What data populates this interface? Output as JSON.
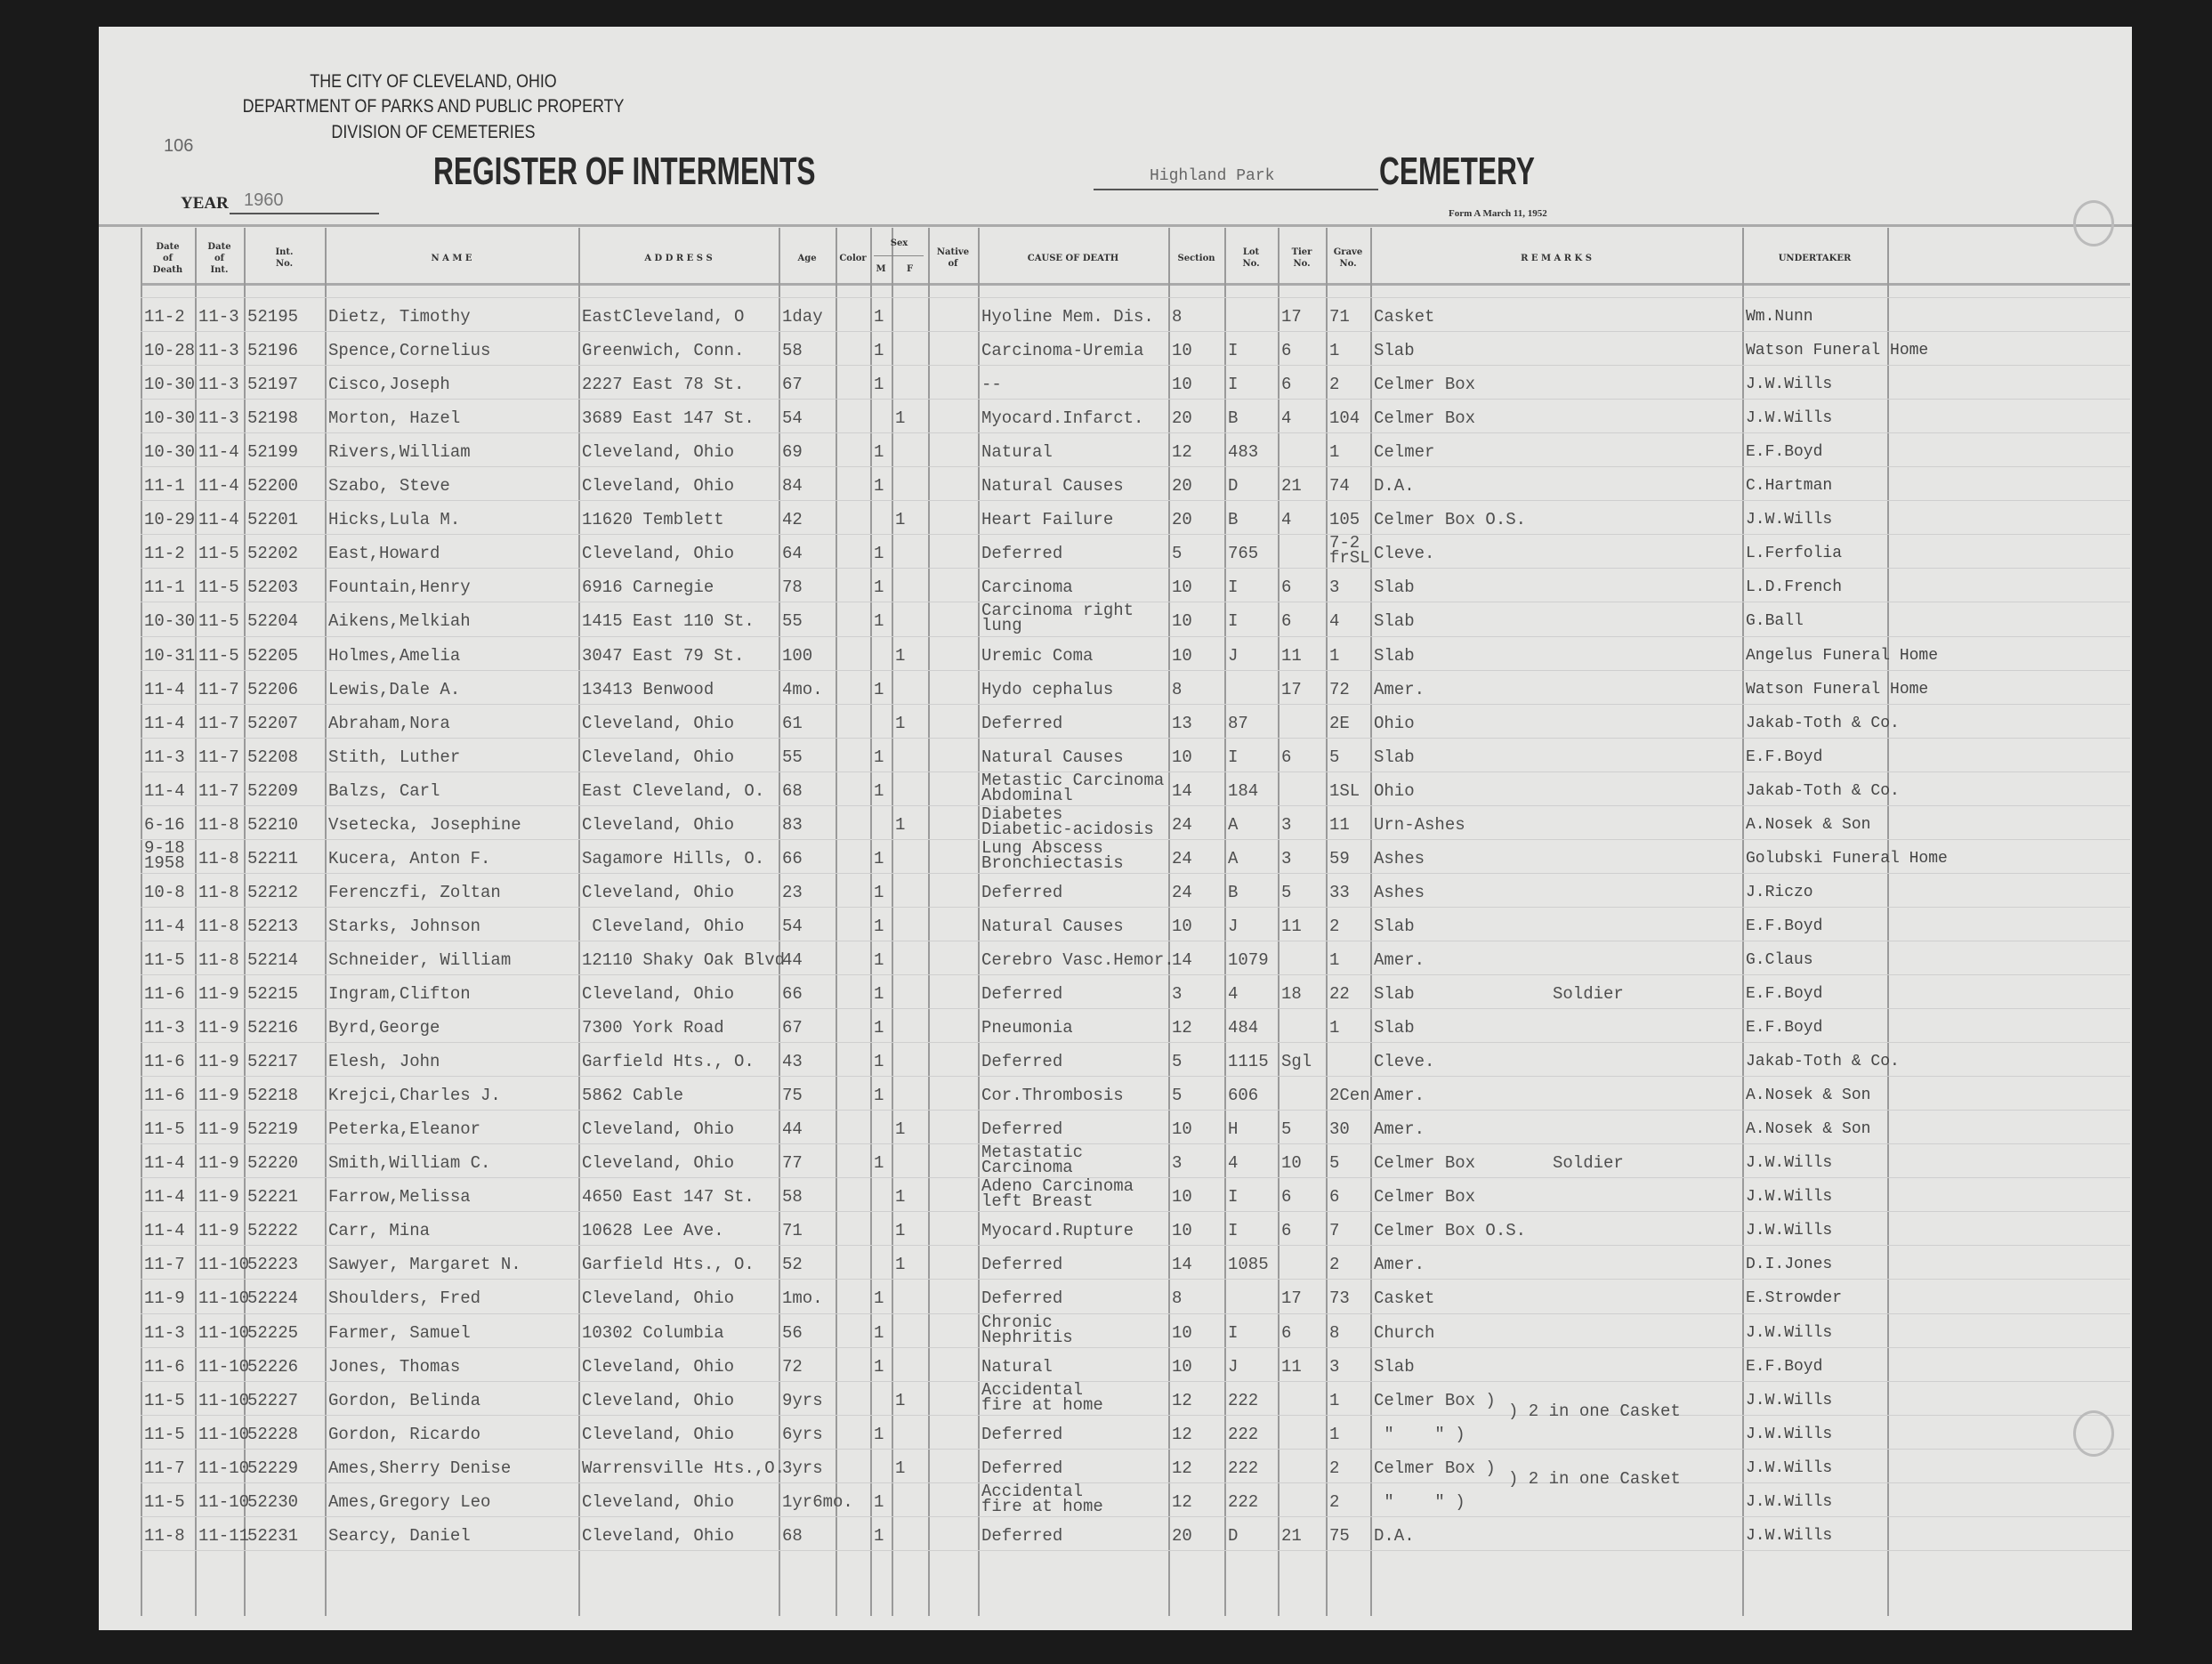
{
  "header": {
    "city": "THE CITY OF CLEVELAND, OHIO",
    "department": "DEPARTMENT OF PARKS AND PUBLIC PROPERTY",
    "division": "DIVISION OF CEMETERIES",
    "page_number": "106",
    "title": "REGISTER OF INTERMENTS",
    "cemetery_name": "Highland Park",
    "cemetery_label": "CEMETERY",
    "year_label": "YEAR",
    "year": "1960",
    "form": "Form A March 11, 1952"
  },
  "columns": {
    "date_of_death": "Date\nof\nDeath",
    "date_of_int": "Date\nof\nInt.",
    "int_no": "Int.\nNo.",
    "name": "N A M E",
    "address": "A D D R E S S",
    "age": "Age",
    "color": "Color",
    "sex": "Sex",
    "m": "M",
    "f": "F",
    "native_of": "Native\nof",
    "cause": "CAUSE OF DEATH",
    "section": "Section",
    "lot": "Lot\nNo.",
    "tier": "Tier\nNo.",
    "grave": "Grave\nNo.",
    "remarks": "R E M A R K S",
    "undertaker": "UNDERTAKER"
  },
  "rows": [
    {
      "death": "11-2",
      "int": "11-3",
      "no": "52195",
      "name": "Dietz, Timothy",
      "address": "EastCleveland, O",
      "age": "1day",
      "m": "1",
      "f": "",
      "cause": "Hyoline Mem. Dis.",
      "section": "8",
      "lot": "",
      "tier": "17",
      "grave": "71",
      "remarks": "Casket",
      "note": "",
      "undertaker": "Wm.Nunn"
    },
    {
      "death": "10-28",
      "int": "11-3",
      "no": "52196",
      "name": "Spence,Cornelius",
      "address": "Greenwich, Conn.",
      "age": "58",
      "m": "1",
      "f": "",
      "cause": "Carcinoma-Uremia",
      "section": "10",
      "lot": "I",
      "tier": "6",
      "grave": "1",
      "remarks": "Slab",
      "note": "",
      "undertaker": "Watson Funeral Home"
    },
    {
      "death": "10-30",
      "int": "11-3",
      "no": "52197",
      "name": "Cisco,Joseph",
      "address": "2227 East 78 St.",
      "age": "67",
      "m": "1",
      "f": "",
      "cause": "--",
      "section": "10",
      "lot": "I",
      "tier": "6",
      "grave": "2",
      "remarks": "Celmer Box",
      "note": "",
      "undertaker": "J.W.Wills"
    },
    {
      "death": "10-30",
      "int": "11-3",
      "no": "52198",
      "name": "Morton, Hazel",
      "address": "3689 East 147 St.",
      "age": "54",
      "m": "",
      "f": "1",
      "cause": "Myocard.Infarct.",
      "section": "20",
      "lot": "B",
      "tier": "4",
      "grave": "104",
      "remarks": "Celmer Box",
      "note": "",
      "undertaker": "J.W.Wills"
    },
    {
      "death": "10-30",
      "int": "11-4",
      "no": "52199",
      "name": "Rivers,William",
      "address": "Cleveland, Ohio",
      "age": "69",
      "m": "1",
      "f": "",
      "cause": "Natural",
      "section": "12",
      "lot": "483",
      "tier": "",
      "grave": "1",
      "remarks": "Celmer",
      "note": "",
      "undertaker": "E.F.Boyd"
    },
    {
      "death": "11-1",
      "int": "11-4",
      "no": "52200",
      "name": "Szabo, Steve",
      "address": "Cleveland, Ohio",
      "age": "84",
      "m": "1",
      "f": "",
      "cause": "Natural Causes",
      "section": "20",
      "lot": "D",
      "tier": "21",
      "grave": "74",
      "remarks": "D.A.",
      "note": "",
      "undertaker": "C.Hartman"
    },
    {
      "death": "10-29",
      "int": "11-4",
      "no": "52201",
      "name": "Hicks,Lula M.",
      "address": "11620 Temblett",
      "age": "42",
      "m": "",
      "f": "1",
      "cause": "Heart Failure",
      "section": "20",
      "lot": "B",
      "tier": "4",
      "grave": "105",
      "remarks": "Celmer Box O.S.",
      "note": "",
      "undertaker": "J.W.Wills"
    },
    {
      "death": "11-2",
      "int": "11-5",
      "no": "52202",
      "name": "East,Howard",
      "address": "Cleveland, Ohio",
      "age": "64",
      "m": "1",
      "f": "",
      "cause": "Deferred",
      "section": "5",
      "lot": "765",
      "tier": "",
      "grave": "7-2\nfrSL",
      "remarks": "Cleve.",
      "note": "",
      "undertaker": "L.Ferfolia"
    },
    {
      "death": "11-1",
      "int": "11-5",
      "no": "52203",
      "name": "Fountain,Henry",
      "address": "6916 Carnegie",
      "age": "78",
      "m": "1",
      "f": "",
      "cause": "Carcinoma",
      "section": "10",
      "lot": "I",
      "tier": "6",
      "grave": "3",
      "remarks": "Slab",
      "note": "",
      "undertaker": "L.D.French"
    },
    {
      "death": "10-30",
      "int": "11-5",
      "no": "52204",
      "name": "Aikens,Melkiah",
      "address": "1415 East 110 St.",
      "age": "55",
      "m": "1",
      "f": "",
      "cause": "Carcinoma right\nlung",
      "section": "10",
      "lot": "I",
      "tier": "6",
      "grave": "4",
      "remarks": "Slab",
      "note": "",
      "undertaker": "G.Ball"
    },
    {
      "death": "10-31",
      "int": "11-5",
      "no": "52205",
      "name": "Holmes,Amelia",
      "address": "3047 East 79 St.",
      "age": "100",
      "m": "",
      "f": "1",
      "cause": "Uremic Coma",
      "section": "10",
      "lot": "J",
      "tier": "11",
      "grave": "1",
      "remarks": "Slab",
      "note": "",
      "undertaker": "Angelus Funeral Home"
    },
    {
      "death": "11-4",
      "int": "11-7",
      "no": "52206",
      "name": "Lewis,Dale A.",
      "address": "13413 Benwood",
      "age": "4mo.",
      "m": "1",
      "f": "",
      "cause": "Hydo cephalus",
      "section": "8",
      "lot": "",
      "tier": "17",
      "grave": "72",
      "remarks": "Amer.",
      "note": "",
      "undertaker": "Watson Funeral Home"
    },
    {
      "death": "11-4",
      "int": "11-7",
      "no": "52207",
      "name": "Abraham,Nora",
      "address": "Cleveland, Ohio",
      "age": "61",
      "m": "",
      "f": "1",
      "cause": "Deferred",
      "section": "13",
      "lot": "87",
      "tier": "",
      "grave": "2E",
      "remarks": "Ohio",
      "note": "",
      "undertaker": "Jakab-Toth & Co."
    },
    {
      "death": "11-3",
      "int": "11-7",
      "no": "52208",
      "name": "Stith, Luther",
      "address": "Cleveland, Ohio",
      "age": "55",
      "m": "1",
      "f": "",
      "cause": "Natural Causes",
      "section": "10",
      "lot": "I",
      "tier": "6",
      "grave": "5",
      "remarks": "Slab",
      "note": "",
      "undertaker": "E.F.Boyd"
    },
    {
      "death": "11-4",
      "int": "11-7",
      "no": "52209",
      "name": "Balzs, Carl",
      "address": "East Cleveland, O.",
      "age": "68",
      "m": "1",
      "f": "",
      "cause": "Metastic Carcinoma\nAbdominal",
      "section": "14",
      "lot": "184",
      "tier": "",
      "grave": "1SL",
      "remarks": "Ohio",
      "note": "",
      "undertaker": "Jakab-Toth & Co."
    },
    {
      "death": "6-16",
      "int": "11-8",
      "no": "52210",
      "name": "Vsetecka, Josephine",
      "address": "Cleveland, Ohio",
      "age": "83",
      "m": "",
      "f": "1",
      "cause": "Diabetes\nDiabetic-acidosis",
      "section": "24",
      "lot": "A",
      "tier": "3",
      "grave": "11",
      "remarks": "Urn-Ashes",
      "note": "",
      "undertaker": "A.Nosek & Son"
    },
    {
      "death": "9-18\n1958",
      "int": "11-8",
      "no": "52211",
      "name": "Kucera, Anton F.",
      "address": "Sagamore Hills, O.",
      "age": "66",
      "m": "1",
      "f": "",
      "cause": "Lung Abscess\nBronchiectasis",
      "section": "24",
      "lot": "A",
      "tier": "3",
      "grave": "59",
      "remarks": "Ashes",
      "note": "",
      "undertaker": "Golubski Funeral Home"
    },
    {
      "death": "10-8",
      "int": "11-8",
      "no": "52212",
      "name": "Ferenczfi, Zoltan",
      "address": "Cleveland, Ohio",
      "age": "23",
      "m": "1",
      "f": "",
      "cause": "Deferred",
      "section": "24",
      "lot": "B",
      "tier": "5",
      "grave": "33",
      "remarks": "Ashes",
      "note": "",
      "undertaker": "J.Riczo"
    },
    {
      "death": "11-4",
      "int": "11-8",
      "no": "52213",
      "name": "Starks, Johnson",
      "address": " Cleveland, Ohio",
      "age": "54",
      "m": "1",
      "f": "",
      "cause": "Natural Causes",
      "section": "10",
      "lot": "J",
      "tier": "11",
      "grave": "2",
      "remarks": "Slab",
      "note": "",
      "undertaker": "E.F.Boyd"
    },
    {
      "death": "11-5",
      "int": "11-8",
      "no": "52214",
      "name": "Schneider, William",
      "address": "12110 Shaky Oak Blvd",
      "age": "44",
      "m": "1",
      "f": "",
      "cause": "Cerebro Vasc.Hemor.",
      "section": "14",
      "lot": "1079",
      "tier": "",
      "grave": "1",
      "remarks": "Amer.",
      "note": "",
      "undertaker": "G.Claus"
    },
    {
      "death": "11-6",
      "int": "11-9",
      "no": "52215",
      "name": "Ingram,Clifton",
      "address": "Cleveland, Ohio",
      "age": "66",
      "m": "1",
      "f": "",
      "cause": "Deferred",
      "section": "3",
      "lot": "4",
      "tier": "18",
      "grave": "22",
      "remarks": "Slab",
      "note": "Soldier",
      "undertaker": "E.F.Boyd"
    },
    {
      "death": "11-3",
      "int": "11-9",
      "no": "52216",
      "name": "Byrd,George",
      "address": "7300 York Road",
      "age": "67",
      "m": "1",
      "f": "",
      "cause": "Pneumonia",
      "section": "12",
      "lot": "484",
      "tier": "",
      "grave": "1",
      "remarks": "Slab",
      "note": "",
      "undertaker": "E.F.Boyd"
    },
    {
      "death": "11-6",
      "int": "11-9",
      "no": "52217",
      "name": "Elesh, John",
      "address": "Garfield Hts., O.",
      "age": "43",
      "m": "1",
      "f": "",
      "cause": "Deferred",
      "section": "5",
      "lot": "1115",
      "tier": "Sgl",
      "grave": "",
      "remarks": "Cleve.",
      "note": "",
      "undertaker": "Jakab-Toth & Co."
    },
    {
      "death": "11-6",
      "int": "11-9",
      "no": "52218",
      "name": "Krejci,Charles J.",
      "address": "5862 Cable",
      "age": "75",
      "m": "1",
      "f": "",
      "cause": "Cor.Thrombosis",
      "section": "5",
      "lot": "606",
      "tier": "",
      "grave": "2Cen",
      "remarks": "Amer.",
      "note": "",
      "undertaker": "A.Nosek & Son"
    },
    {
      "death": "11-5",
      "int": "11-9",
      "no": "52219",
      "name": "Peterka,Eleanor",
      "address": "Cleveland, Ohio",
      "age": "44",
      "m": "",
      "f": "1",
      "cause": "Deferred",
      "section": "10",
      "lot": "H",
      "tier": "5",
      "grave": "30",
      "remarks": "Amer.",
      "note": "",
      "undertaker": "A.Nosek & Son"
    },
    {
      "death": "11-4",
      "int": "11-9",
      "no": "52220",
      "name": "Smith,William C.",
      "address": "Cleveland, Ohio",
      "age": "77",
      "m": "1",
      "f": "",
      "cause": "Metastatic\nCarcinoma",
      "section": "3",
      "lot": "4",
      "tier": "10",
      "grave": "5",
      "remarks": "Celmer Box",
      "note": "Soldier",
      "undertaker": "J.W.Wills"
    },
    {
      "death": "11-4",
      "int": "11-9",
      "no": "52221",
      "name": "Farrow,Melissa",
      "address": "4650 East 147 St.",
      "age": "58",
      "m": "",
      "f": "1",
      "cause": "Adeno Carcinoma\nleft Breast",
      "section": "10",
      "lot": "I",
      "tier": "6",
      "grave": "6",
      "remarks": "Celmer Box",
      "note": "",
      "undertaker": "J.W.Wills"
    },
    {
      "death": "11-4",
      "int": "11-9",
      "no": "52222",
      "name": "Carr, Mina",
      "address": "10628 Lee Ave.",
      "age": "71",
      "m": "",
      "f": "1",
      "cause": "Myocard.Rupture",
      "section": "10",
      "lot": "I",
      "tier": "6",
      "grave": "7",
      "remarks": "Celmer Box O.S.",
      "note": "",
      "undertaker": "J.W.Wills"
    },
    {
      "death": "11-7",
      "int": "11-10",
      "no": "52223",
      "name": "Sawyer, Margaret N.",
      "address": "Garfield Hts., O.",
      "age": "52",
      "m": "",
      "f": "1",
      "cause": "Deferred",
      "section": "14",
      "lot": "1085",
      "tier": "",
      "grave": "2",
      "remarks": "Amer.",
      "note": "",
      "undertaker": "D.I.Jones"
    },
    {
      "death": "11-9",
      "int": "11-10",
      "no": "52224",
      "name": "Shoulders, Fred",
      "address": "Cleveland, Ohio",
      "age": "1mo.",
      "m": "1",
      "f": "",
      "cause": "Deferred",
      "section": "8",
      "lot": "",
      "tier": "17",
      "grave": "73",
      "remarks": "Casket",
      "note": "",
      "undertaker": "E.Strowder"
    },
    {
      "death": "11-3",
      "int": "11-10",
      "no": "52225",
      "name": "Farmer, Samuel",
      "address": "10302 Columbia",
      "age": "56",
      "m": "1",
      "f": "",
      "cause": "Chronic\nNephritis",
      "section": "10",
      "lot": "I",
      "tier": "6",
      "grave": "8",
      "remarks": "Church",
      "note": "",
      "undertaker": "J.W.Wills"
    },
    {
      "death": "11-6",
      "int": "11-10",
      "no": "52226",
      "name": "Jones, Thomas",
      "address": "Cleveland, Ohio",
      "age": "72",
      "m": "1",
      "f": "",
      "cause": "Natural",
      "section": "10",
      "lot": "J",
      "tier": "11",
      "grave": "3",
      "remarks": "Slab",
      "note": "",
      "undertaker": "E.F.Boyd"
    },
    {
      "death": "11-5",
      "int": "11-10",
      "no": "52227",
      "name": "Gordon, Belinda",
      "address": "Cleveland, Ohio",
      "age": "9yrs",
      "m": "",
      "f": "1",
      "cause": "Accidental\nfire at home",
      "section": "12",
      "lot": "222",
      "tier": "",
      "grave": "1",
      "remarks": "Celmer Box )",
      "note": ") 2 in one Casket",
      "undertaker": "J.W.Wills"
    },
    {
      "death": "11-5",
      "int": "11-10",
      "no": "52228",
      "name": "Gordon, Ricardo",
      "address": "Cleveland, Ohio",
      "age": "6yrs",
      "m": "1",
      "f": "",
      "cause": "Deferred",
      "section": "12",
      "lot": "222",
      "tier": "",
      "grave": "1",
      "remarks": " \"    \" )",
      "note": "",
      "undertaker": "J.W.Wills"
    },
    {
      "death": "11-7",
      "int": "11-10",
      "no": "52229",
      "name": "Ames,Sherry Denise",
      "address": "Warrensville Hts.,O.",
      "age": "3yrs",
      "m": "",
      "f": "1",
      "cause": "Deferred",
      "section": "12",
      "lot": "222",
      "tier": "",
      "grave": "2",
      "remarks": "Celmer Box )",
      "note": ") 2 in one Casket",
      "undertaker": "J.W.Wills"
    },
    {
      "death": "11-5",
      "int": "11-10",
      "no": "52230",
      "name": "Ames,Gregory Leo",
      "address": "Cleveland, Ohio",
      "age": "1yr6mo.",
      "m": "1",
      "f": "",
      "cause": "Accidental\nfire at home",
      "section": "12",
      "lot": "222",
      "tier": "",
      "grave": "2",
      "remarks": " \"    \" )",
      "note": "",
      "undertaker": "J.W.Wills"
    },
    {
      "death": "11-8",
      "int": "11-11",
      "no": "52231",
      "name": "Searcy, Daniel",
      "address": "Cleveland, Ohio",
      "age": "68",
      "m": "1",
      "f": "",
      "cause": "Deferred",
      "section": "20",
      "lot": "D",
      "tier": "21",
      "grave": "75",
      "remarks": "D.A.",
      "note": "",
      "undertaker": "J.W.Wills"
    }
  ]
}
